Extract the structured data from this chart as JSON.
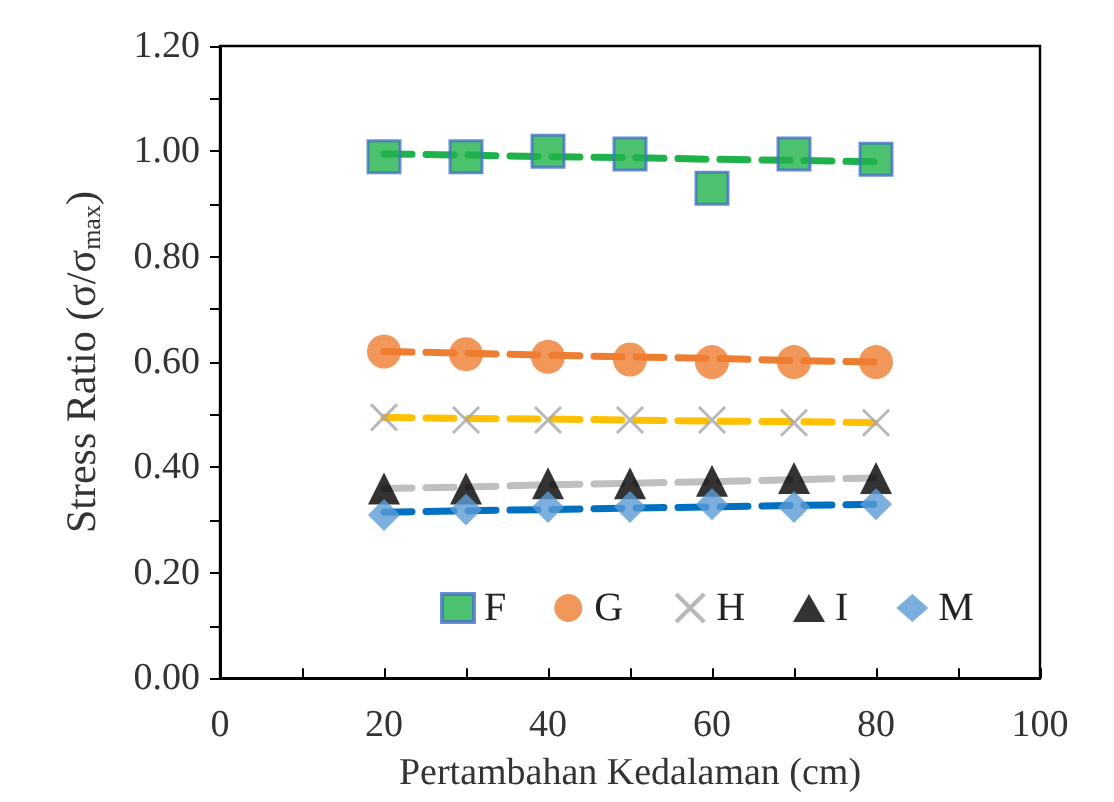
{
  "chart_data": {
    "type": "scatter",
    "xlabel": "Pertambahan Kedalaman (cm)",
    "ylabel": "Stress Ratio (σ/σ$_{max}$)",
    "x": [
      20,
      30,
      40,
      50,
      60,
      70,
      80
    ],
    "xlim": [
      0,
      100
    ],
    "xticks": [
      0,
      20,
      40,
      60,
      80,
      100
    ],
    "ylim": [
      0,
      1.2
    ],
    "yticks": [
      {
        "value": 0,
        "label": "0.00"
      },
      {
        "value": 0.2,
        "label": "0.20"
      },
      {
        "value": 0.4,
        "label": "0.40"
      },
      {
        "value": 0.6,
        "label": "0.60"
      },
      {
        "value": 0.8,
        "label": "0.80"
      },
      {
        "value": 1.0,
        "label": "1.00"
      },
      {
        "value": 1.2,
        "label": "1.20"
      }
    ],
    "grid": false,
    "legend": "bottom",
    "series": [
      {
        "type": "line",
        "color": "#1fb24a",
        "line_style": "dashed",
        "marker": "none",
        "values": [
          0.995,
          0.993,
          0.99,
          0.988,
          0.985,
          0.983,
          0.98
        ]
      },
      {
        "type": "line",
        "color": "#ed7d31",
        "line_style": "dashed",
        "marker": "none",
        "values": [
          0.62,
          0.617,
          0.613,
          0.61,
          0.607,
          0.603,
          0.6
        ]
      },
      {
        "type": "line",
        "color": "#ffc000",
        "line_style": "dashed",
        "marker": "none",
        "values": [
          0.495,
          0.493,
          0.492,
          0.49,
          0.488,
          0.487,
          0.485
        ]
      },
      {
        "type": "line",
        "color": "#bfbfbf",
        "line_style": "dashed",
        "marker": "none",
        "values": [
          0.36,
          0.363,
          0.367,
          0.37,
          0.373,
          0.377,
          0.38
        ]
      },
      {
        "type": "line",
        "color": "#0070c0",
        "line_style": "dashed",
        "marker": "none",
        "values": [
          0.315,
          0.318,
          0.32,
          0.323,
          0.325,
          0.328,
          0.33
        ]
      },
      {
        "name": "F",
        "color": "#1fb24a",
        "marker": "square",
        "values": [
          0.99,
          0.99,
          1.0,
          0.995,
          0.93,
          0.995,
          0.985
        ]
      },
      {
        "name": "G",
        "color": "#ed7d31",
        "marker": "circle",
        "values": [
          0.62,
          0.615,
          0.61,
          0.605,
          0.6,
          0.6,
          0.6
        ]
      },
      {
        "name": "H",
        "color": "#a5a5a5",
        "marker": "cross",
        "values": [
          0.495,
          0.49,
          0.49,
          0.49,
          0.49,
          0.485,
          0.485
        ]
      },
      {
        "name": "I",
        "color": "#000000",
        "marker": "triangle",
        "values": [
          0.36,
          0.36,
          0.37,
          0.37,
          0.375,
          0.38,
          0.38
        ]
      },
      {
        "name": "M",
        "color": "#5b9bd5",
        "marker": "diamond",
        "values": [
          0.31,
          0.32,
          0.325,
          0.325,
          0.33,
          0.325,
          0.33
        ]
      }
    ]
  }
}
